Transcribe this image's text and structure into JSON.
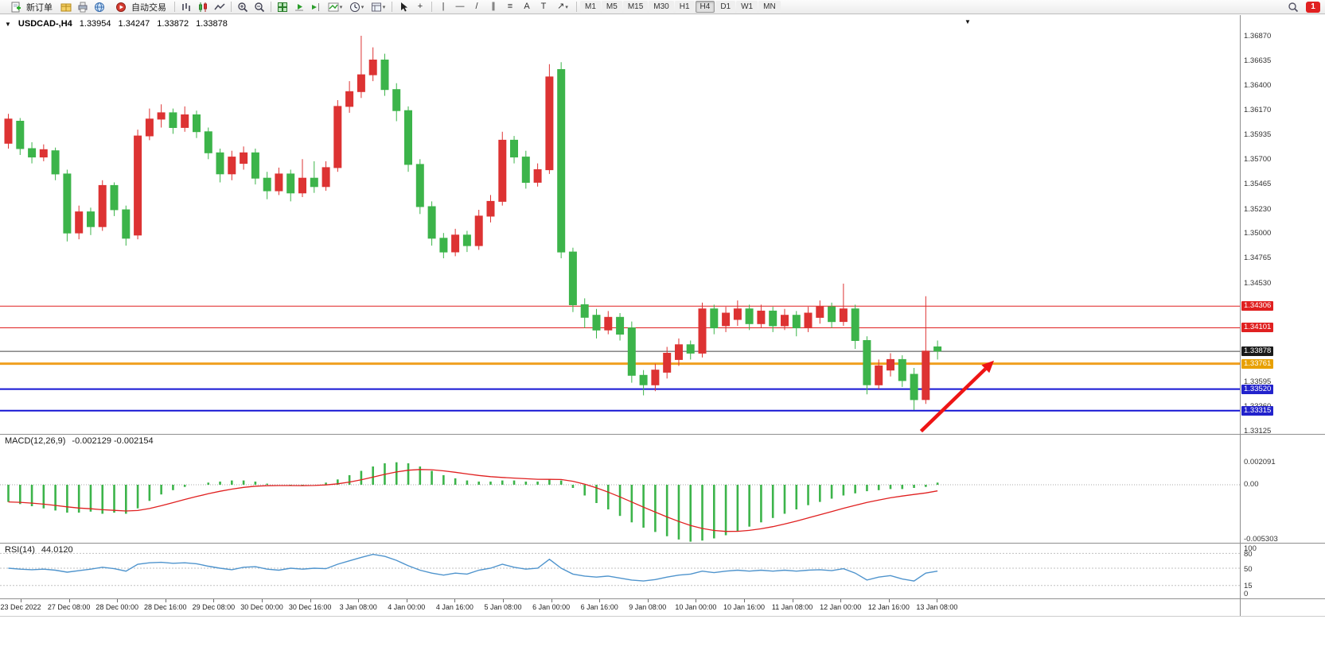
{
  "app": {
    "new_order_label": "新订单",
    "autotrade_label": "自动交易",
    "timeframes": [
      "M1",
      "M5",
      "M15",
      "M30",
      "H1",
      "H4",
      "D1",
      "W1",
      "MN"
    ],
    "active_timeframe": "H4",
    "notification_count": "1",
    "icons": {
      "caret": "▾",
      "collapse": "▼",
      "shift_marker": "▼",
      "crosshair": "+",
      "vline": "|",
      "hline": "—",
      "trendline": "/",
      "channel": "∥",
      "fibo": "≡",
      "text_tool": "A",
      "label_tool": "T",
      "arrows_tool": "↗"
    }
  },
  "chart_data": {
    "type": "candlestick",
    "symbol_title": "USDCAD-,H4",
    "ohlc": {
      "open": "1.33954",
      "high": "1.34247",
      "low": "1.33872",
      "close": "1.33878"
    },
    "y_axis_labels": [
      "1.36870",
      "1.36635",
      "1.36400",
      "1.36170",
      "1.35935",
      "1.35700",
      "1.35465",
      "1.35230",
      "1.35000",
      "1.34765",
      "1.34530",
      "1.33595",
      "1.33360",
      "1.33125"
    ],
    "price_tags": [
      {
        "text": "1.34306",
        "color": "red"
      },
      {
        "text": "1.34101",
        "color": "red"
      },
      {
        "text": "1.33878",
        "color": "black"
      },
      {
        "text": "1.33761",
        "color": "orange"
      },
      {
        "text": "1.33520",
        "color": "blue"
      },
      {
        "text": "1.33315",
        "color": "blue"
      }
    ],
    "hlines": [
      {
        "price": 1.34306,
        "color": "hline_red",
        "width": 1
      },
      {
        "price": 1.34101,
        "color": "hline_red",
        "width": 1
      },
      {
        "price": 1.33878,
        "color": "price_line",
        "width": 1
      },
      {
        "price": 1.33761,
        "color": "hline_orange",
        "width": 3
      },
      {
        "price": 1.3352,
        "color": "hline_blue",
        "width": 2
      },
      {
        "price": 1.33315,
        "color": "hline_blue",
        "width": 2
      }
    ],
    "candles": [
      [
        1.3585,
        1.3613,
        1.358,
        1.3608
      ],
      [
        1.3606,
        1.3609,
        1.3574,
        1.358
      ],
      [
        1.358,
        1.3586,
        1.3566,
        1.3572
      ],
      [
        1.3572,
        1.3584,
        1.3568,
        1.3579
      ],
      [
        1.3578,
        1.3581,
        1.355,
        1.3556
      ],
      [
        1.3556,
        1.356,
        1.3492,
        1.35
      ],
      [
        1.35,
        1.3526,
        1.3494,
        1.352
      ],
      [
        1.352,
        1.3524,
        1.3498,
        1.3506
      ],
      [
        1.3506,
        1.355,
        1.3502,
        1.3545
      ],
      [
        1.3545,
        1.3548,
        1.3516,
        1.3522
      ],
      [
        1.3522,
        1.3526,
        1.3488,
        1.3495
      ],
      [
        1.3498,
        1.3598,
        1.3494,
        1.3592
      ],
      [
        1.3592,
        1.3618,
        1.3588,
        1.3608
      ],
      [
        1.3608,
        1.3622,
        1.36,
        1.3614
      ],
      [
        1.3614,
        1.3618,
        1.3594,
        1.36
      ],
      [
        1.36,
        1.362,
        1.3596,
        1.3612
      ],
      [
        1.3612,
        1.3616,
        1.359,
        1.3596
      ],
      [
        1.3596,
        1.36,
        1.357,
        1.3576
      ],
      [
        1.3576,
        1.358,
        1.3548,
        1.3556
      ],
      [
        1.3556,
        1.3578,
        1.355,
        1.3572
      ],
      [
        1.3566,
        1.3582,
        1.356,
        1.3576
      ],
      [
        1.3576,
        1.358,
        1.3546,
        1.3552
      ],
      [
        1.3552,
        1.3558,
        1.3532,
        1.354
      ],
      [
        1.354,
        1.3562,
        1.3536,
        1.3556
      ],
      [
        1.3556,
        1.356,
        1.353,
        1.3538
      ],
      [
        1.3538,
        1.357,
        1.3534,
        1.3552
      ],
      [
        1.3552,
        1.3568,
        1.3538,
        1.3544
      ],
      [
        1.3544,
        1.3568,
        1.354,
        1.3562
      ],
      [
        1.3562,
        1.3626,
        1.3558,
        1.362
      ],
      [
        1.362,
        1.3644,
        1.3614,
        1.3634
      ],
      [
        1.3634,
        1.3687,
        1.3628,
        1.365
      ],
      [
        1.365,
        1.3676,
        1.3644,
        1.3664
      ],
      [
        1.3664,
        1.367,
        1.363,
        1.3636
      ],
      [
        1.3636,
        1.3642,
        1.3606,
        1.3616
      ],
      [
        1.3616,
        1.362,
        1.3558,
        1.3565
      ],
      [
        1.3565,
        1.357,
        1.3518,
        1.3525
      ],
      [
        1.3525,
        1.353,
        1.3488,
        1.3495
      ],
      [
        1.3495,
        1.35,
        1.3476,
        1.3482
      ],
      [
        1.3482,
        1.3504,
        1.3478,
        1.3498
      ],
      [
        1.3498,
        1.3502,
        1.3482,
        1.3488
      ],
      [
        1.3488,
        1.3522,
        1.3484,
        1.3516
      ],
      [
        1.3516,
        1.3536,
        1.351,
        1.353
      ],
      [
        1.353,
        1.3596,
        1.3526,
        1.3588
      ],
      [
        1.3588,
        1.3592,
        1.3566,
        1.3572
      ],
      [
        1.3572,
        1.3578,
        1.3542,
        1.3548
      ],
      [
        1.3548,
        1.3566,
        1.3544,
        1.356
      ],
      [
        1.356,
        1.366,
        1.3556,
        1.3648
      ],
      [
        1.3655,
        1.3662,
        1.3476,
        1.3482
      ],
      [
        1.3482,
        1.3486,
        1.3425,
        1.3432
      ],
      [
        1.3432,
        1.3438,
        1.341,
        1.342
      ],
      [
        1.3422,
        1.3428,
        1.34,
        1.3408
      ],
      [
        1.3408,
        1.3426,
        1.3404,
        1.342
      ],
      [
        1.342,
        1.3424,
        1.3398,
        1.3404
      ],
      [
        1.341,
        1.3416,
        1.3358,
        1.3365
      ],
      [
        1.3365,
        1.337,
        1.3346,
        1.3356
      ],
      [
        1.3356,
        1.3376,
        1.335,
        1.337
      ],
      [
        1.3368,
        1.3392,
        1.3362,
        1.3386
      ],
      [
        1.338,
        1.34,
        1.3374,
        1.3394
      ],
      [
        1.3394,
        1.3398,
        1.338,
        1.3386
      ],
      [
        1.3386,
        1.3434,
        1.3382,
        1.3428
      ],
      [
        1.3428,
        1.3432,
        1.3404,
        1.341
      ],
      [
        1.3412,
        1.343,
        1.3406,
        1.3424
      ],
      [
        1.3418,
        1.3436,
        1.3412,
        1.3428
      ],
      [
        1.3428,
        1.3432,
        1.3408,
        1.3414
      ],
      [
        1.3414,
        1.3432,
        1.341,
        1.3426
      ],
      [
        1.3426,
        1.343,
        1.3406,
        1.3412
      ],
      [
        1.3412,
        1.3428,
        1.3408,
        1.3422
      ],
      [
        1.3422,
        1.3426,
        1.3402,
        1.341
      ],
      [
        1.341,
        1.343,
        1.3406,
        1.3424
      ],
      [
        1.342,
        1.3436,
        1.3414,
        1.343
      ],
      [
        1.343,
        1.3434,
        1.341,
        1.3416
      ],
      [
        1.3416,
        1.3452,
        1.3412,
        1.3428
      ],
      [
        1.3428,
        1.3432,
        1.339,
        1.3398
      ],
      [
        1.3398,
        1.3402,
        1.3347,
        1.3356
      ],
      [
        1.3356,
        1.338,
        1.3352,
        1.3374
      ],
      [
        1.337,
        1.3386,
        1.3364,
        1.338
      ],
      [
        1.338,
        1.3384,
        1.3354,
        1.336
      ],
      [
        1.3366,
        1.3372,
        1.3332,
        1.3342
      ],
      [
        1.3342,
        1.344,
        1.3338,
        1.3388
      ],
      [
        1.3392,
        1.3398,
        1.338,
        1.3388
      ]
    ],
    "x_labels": [
      "23 Dec 2022",
      "27 Dec 08:00",
      "28 Dec 00:00",
      "28 Dec 16:00",
      "29 Dec 08:00",
      "30 Dec 00:00",
      "30 Dec 16:00",
      "3 Jan 08:00",
      "4 Jan 00:00",
      "4 Jan 16:00",
      "5 Jan 08:00",
      "6 Jan 00:00",
      "6 Jan 16:00",
      "9 Jan 08:00",
      "10 Jan 00:00",
      "10 Jan 16:00",
      "11 Jan 08:00",
      "12 Jan 00:00",
      "12 Jan 16:00",
      "13 Jan 08:00"
    ],
    "annotation_arrow": {
      "x1_index": 77.6,
      "price1": 1.3312,
      "x2_index": 83.8,
      "price2": 1.3379
    },
    "macd": {
      "label": "MACD(12,26,9)",
      "values_display": "-0.002129 -0.002154",
      "axis_labels": [
        "0.002091",
        "0.00",
        "-0.005303"
      ],
      "histogram": [
        -0.0016,
        -0.0018,
        -0.002,
        -0.0022,
        -0.0024,
        -0.0026,
        -0.0026,
        -0.0025,
        -0.0027,
        -0.0026,
        -0.0027,
        -0.0022,
        -0.0015,
        -0.0009,
        -0.0005,
        -0.0002,
        0.0,
        0.0002,
        0.0003,
        0.0004,
        0.0004,
        0.0003,
        0.0001,
        0.0,
        -0.0001,
        -0.0001,
        0.0,
        0.0002,
        0.0005,
        0.0009,
        0.0013,
        0.0017,
        0.002,
        0.0021,
        0.002,
        0.0017,
        0.0013,
        0.0009,
        0.0006,
        0.0004,
        0.0003,
        0.0003,
        0.0004,
        0.0004,
        0.0003,
        0.0003,
        0.0005,
        0.0004,
        -0.0003,
        -0.001,
        -0.0017,
        -0.0023,
        -0.0029,
        -0.0035,
        -0.004,
        -0.0044,
        -0.0048,
        -0.0051,
        -0.0053,
        -0.0052,
        -0.005,
        -0.0047,
        -0.0043,
        -0.0039,
        -0.0035,
        -0.0031,
        -0.0027,
        -0.0023,
        -0.0019,
        -0.0016,
        -0.0013,
        -0.001,
        -0.0008,
        -0.0006,
        -0.0005,
        -0.0004,
        -0.0004,
        -0.0003,
        -0.0002,
        0.0002
      ]
    },
    "rsi": {
      "label": "RSI(14)",
      "value_display": "44.0120",
      "axis_labels": [
        "100",
        "80",
        "50",
        "15",
        "0"
      ],
      "values": [
        50,
        48,
        47,
        48,
        46,
        42,
        45,
        48,
        52,
        49,
        44,
        58,
        61,
        62,
        60,
        61,
        59,
        54,
        50,
        47,
        52,
        53,
        48,
        46,
        50,
        48,
        50,
        49,
        58,
        65,
        72,
        78,
        74,
        66,
        55,
        46,
        40,
        36,
        40,
        38,
        46,
        50,
        58,
        52,
        48,
        50,
        68,
        50,
        38,
        34,
        32,
        34,
        30,
        26,
        24,
        27,
        32,
        36,
        38,
        44,
        41,
        44,
        46,
        44,
        46,
        44,
        46,
        44,
        46,
        47,
        45,
        49,
        40,
        26,
        32,
        35,
        28,
        24,
        40,
        44
      ]
    }
  },
  "colors": {
    "bull": "#dd3333",
    "bear": "#3cb44a",
    "macd_hist": "#3cb44a",
    "macd_signal": "#e02020",
    "rsi_line": "#4f94cd",
    "hline_red": "#e02020",
    "hline_blue": "#1414d4",
    "hline_orange": "#f0a020",
    "price_line": "#444444",
    "arrow": "#ee1515",
    "tag_red": "#e02020",
    "tag_blue": "#2222cc",
    "tag_black": "#1a1a1a",
    "tag_orange": "#e8a000"
  }
}
